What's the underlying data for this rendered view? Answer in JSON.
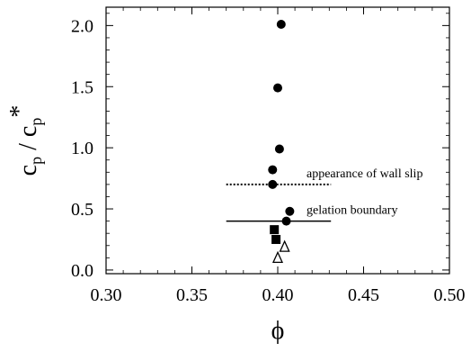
{
  "chart_data": {
    "type": "scatter",
    "title": "",
    "xlabel": "ϕ",
    "ylabel": "c_p / c_p*",
    "xlim": [
      0.3,
      0.5
    ],
    "ylim": [
      -0.03,
      2.15
    ],
    "xticks": [
      0.3,
      0.35,
      0.4,
      0.45,
      0.5
    ],
    "xtick_labels": [
      "0.30",
      "0.35",
      "0.40",
      "0.45",
      "0.50"
    ],
    "yticks": [
      0.0,
      0.5,
      1.0,
      1.5,
      2.0
    ],
    "ytick_labels": [
      "0.0",
      "0.5",
      "1.0",
      "1.5",
      "2.0"
    ],
    "grid": false,
    "series": [
      {
        "marker": "filled-circle",
        "color": "#000000",
        "points": [
          {
            "x": 0.402,
            "y": 2.01
          },
          {
            "x": 0.4,
            "y": 1.49
          },
          {
            "x": 0.401,
            "y": 0.99
          },
          {
            "x": 0.397,
            "y": 0.82
          },
          {
            "x": 0.397,
            "y": 0.7
          },
          {
            "x": 0.407,
            "y": 0.48
          },
          {
            "x": 0.405,
            "y": 0.4
          }
        ]
      },
      {
        "marker": "filled-square",
        "color": "#000000",
        "points": [
          {
            "x": 0.398,
            "y": 0.33
          },
          {
            "x": 0.399,
            "y": 0.25
          }
        ]
      },
      {
        "marker": "open-triangle",
        "color": "#000000",
        "points": [
          {
            "x": 0.404,
            "y": 0.19
          },
          {
            "x": 0.4,
            "y": 0.1
          }
        ]
      }
    ],
    "annotations": [
      {
        "label": "appearance of wall slip",
        "y": 0.7,
        "x_start": 0.37,
        "x_end": 0.431,
        "line_style": "dotted"
      },
      {
        "label": "gelation boundary",
        "y": 0.4,
        "x_start": 0.37,
        "x_end": 0.431,
        "line_style": "solid"
      }
    ]
  }
}
